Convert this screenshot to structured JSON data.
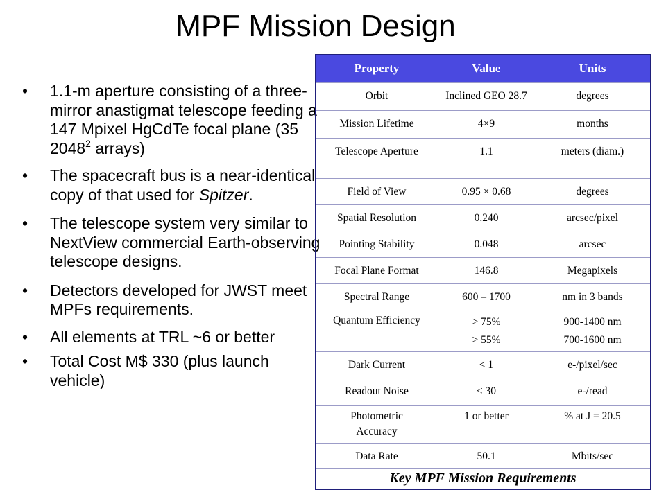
{
  "title": "MPF Mission Design",
  "bullets": [
    {
      "pre": "1.1-m aperture consisting of a three-mirror anastigmat telescope feeding a 147 Mpixel HgCdTe focal plane (35 2048",
      "sup": "2",
      "post": " arrays)"
    },
    {
      "pre": "The spacecraft bus is a near-identical copy of that used for ",
      "italic": "Spitzer",
      "post": "."
    },
    {
      "pre": "The telescope system very similar to NextView commercial Earth-observing telescope designs."
    },
    {
      "pre": "Detectors developed for JWST meet MPFs requirements."
    },
    {
      "pre": "All elements at TRL ~6 or better"
    },
    {
      "pre": "Total Cost M$ 330 (plus launch vehicle)"
    }
  ],
  "bullet_glyph": "•",
  "table": {
    "headers": [
      "Property",
      "Value",
      "Units"
    ],
    "rows": [
      {
        "property": "Orbit",
        "value": "Inclined GEO 28.7",
        "units": "degrees"
      },
      {
        "property": "Mission Lifetime",
        "value": "4×9",
        "units": "months"
      },
      {
        "property": "Telescope Aperture",
        "value": "1.1",
        "units": "meters (diam.)"
      },
      {
        "property": "Field of View",
        "value": "0.95 × 0.68",
        "units": "degrees"
      },
      {
        "property": "Spatial Resolution",
        "value": "0.240",
        "units": "arcsec/pixel"
      },
      {
        "property": "Pointing Stability",
        "value": "0.048",
        "units": "arcsec"
      },
      {
        "property": "Focal Plane Format",
        "value": "146.8",
        "units": "Megapixels"
      },
      {
        "property": "Spectral Range",
        "value": "600 – 1700",
        "units": "nm in 3 bands"
      },
      {
        "property": "Quantum Efficiency",
        "value": "> 75%\n> 55%",
        "units": "900-1400 nm\n700-1600 nm"
      },
      {
        "property": "Dark Current",
        "value": "< 1",
        "units": "e-/pixel/sec"
      },
      {
        "property": "Readout Noise",
        "value": "< 30",
        "units": "e-/read"
      },
      {
        "property": "Photometric Accuracy",
        "value": "1 or better",
        "units": "% at J = 20.5"
      },
      {
        "property": "Data Rate",
        "value": "50.1",
        "units": "Mbits/sec"
      }
    ],
    "caption": "Key MPF Mission Requirements"
  },
  "colors": {
    "header_bg": "#4a49e0",
    "header_text": "#ffffff",
    "border": "#1f1f7a"
  }
}
